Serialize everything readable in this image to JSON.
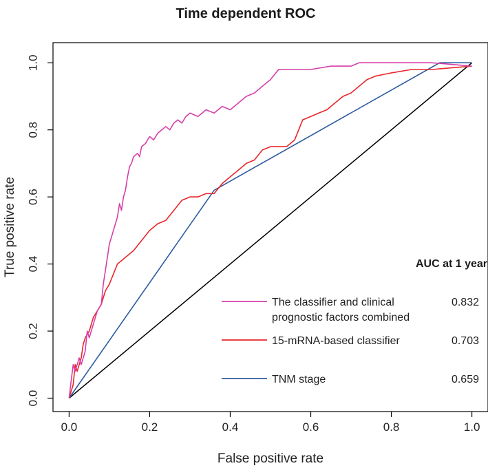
{
  "chart_data": {
    "type": "line",
    "title": "Time dependent ROC",
    "xlabel": "False positive rate",
    "ylabel": "True positive rate",
    "xlim": [
      -0.04,
      1.04
    ],
    "ylim": [
      -0.04,
      1.06
    ],
    "xticks": [
      0.0,
      0.2,
      0.4,
      0.6,
      0.8,
      1.0
    ],
    "yticks": [
      0.0,
      0.2,
      0.4,
      0.6,
      0.8,
      1.0
    ],
    "xtick_labels": [
      "0.0",
      "0.2",
      "0.4",
      "0.6",
      "0.8",
      "1.0"
    ],
    "ytick_labels": [
      "0.0",
      "0.2",
      "0.4",
      "0.6",
      "0.8",
      "1.0"
    ],
    "grid": false,
    "legend_position": "bottom-right",
    "legend_title": "AUC at 1 year",
    "reference_line": {
      "x": [
        0,
        1
      ],
      "y": [
        0,
        1
      ],
      "color": "#000000"
    },
    "series": [
      {
        "name": "The classifier and clinical prognostic factors combined",
        "label_lines": [
          "The classifier and clinical",
          "prognostic factors combined"
        ],
        "auc": "0.832",
        "color": "#d63fa8",
        "x": [
          0.0,
          0.005,
          0.01,
          0.015,
          0.02,
          0.025,
          0.03,
          0.04,
          0.045,
          0.05,
          0.06,
          0.065,
          0.07,
          0.08,
          0.085,
          0.09,
          0.095,
          0.1,
          0.105,
          0.11,
          0.115,
          0.12,
          0.125,
          0.13,
          0.135,
          0.14,
          0.145,
          0.15,
          0.155,
          0.16,
          0.17,
          0.175,
          0.18,
          0.19,
          0.2,
          0.21,
          0.22,
          0.23,
          0.24,
          0.25,
          0.26,
          0.27,
          0.28,
          0.29,
          0.3,
          0.32,
          0.34,
          0.36,
          0.38,
          0.4,
          0.42,
          0.44,
          0.46,
          0.48,
          0.5,
          0.52,
          0.53,
          0.56,
          0.6,
          0.65,
          0.7,
          0.72,
          0.76,
          0.8,
          0.85,
          0.9,
          1.0
        ],
        "y": [
          0.0,
          0.05,
          0.1,
          0.08,
          0.1,
          0.12,
          0.1,
          0.14,
          0.2,
          0.18,
          0.22,
          0.24,
          0.26,
          0.28,
          0.34,
          0.38,
          0.42,
          0.46,
          0.48,
          0.5,
          0.52,
          0.54,
          0.58,
          0.56,
          0.6,
          0.62,
          0.66,
          0.69,
          0.7,
          0.72,
          0.73,
          0.72,
          0.75,
          0.76,
          0.78,
          0.77,
          0.79,
          0.8,
          0.81,
          0.8,
          0.82,
          0.83,
          0.82,
          0.84,
          0.85,
          0.84,
          0.86,
          0.85,
          0.87,
          0.86,
          0.88,
          0.9,
          0.91,
          0.93,
          0.95,
          0.98,
          0.98,
          0.98,
          0.98,
          0.99,
          0.99,
          1.0,
          1.0,
          1.0,
          1.0,
          1.0,
          0.99
        ]
      },
      {
        "name": "15-mRNA-based classifier",
        "label_lines": [
          "15-mRNA-based classifier"
        ],
        "auc": "0.703",
        "color": "#e8262a",
        "x": [
          0.0,
          0.01,
          0.015,
          0.02,
          0.03,
          0.035,
          0.04,
          0.05,
          0.06,
          0.07,
          0.08,
          0.09,
          0.1,
          0.11,
          0.12,
          0.13,
          0.14,
          0.15,
          0.16,
          0.18,
          0.2,
          0.22,
          0.24,
          0.26,
          0.28,
          0.3,
          0.32,
          0.34,
          0.36,
          0.38,
          0.4,
          0.42,
          0.44,
          0.46,
          0.48,
          0.5,
          0.52,
          0.54,
          0.56,
          0.58,
          0.6,
          0.62,
          0.64,
          0.66,
          0.68,
          0.7,
          0.72,
          0.74,
          0.76,
          0.8,
          0.85,
          0.9,
          1.0
        ],
        "y": [
          0.0,
          0.04,
          0.1,
          0.08,
          0.12,
          0.16,
          0.18,
          0.2,
          0.24,
          0.26,
          0.28,
          0.32,
          0.34,
          0.37,
          0.4,
          0.41,
          0.42,
          0.43,
          0.44,
          0.47,
          0.5,
          0.52,
          0.53,
          0.56,
          0.59,
          0.6,
          0.6,
          0.61,
          0.61,
          0.64,
          0.66,
          0.68,
          0.7,
          0.71,
          0.74,
          0.75,
          0.75,
          0.75,
          0.77,
          0.83,
          0.84,
          0.85,
          0.86,
          0.88,
          0.9,
          0.91,
          0.93,
          0.95,
          0.96,
          0.97,
          0.98,
          0.98,
          0.99
        ]
      },
      {
        "name": "TNM stage",
        "label_lines": [
          "TNM stage"
        ],
        "auc": "0.659",
        "color": "#2d5aa0",
        "x": [
          0.0,
          0.36,
          0.92,
          1.0
        ],
        "y": [
          0.0,
          0.62,
          1.0,
          1.0
        ]
      }
    ]
  }
}
